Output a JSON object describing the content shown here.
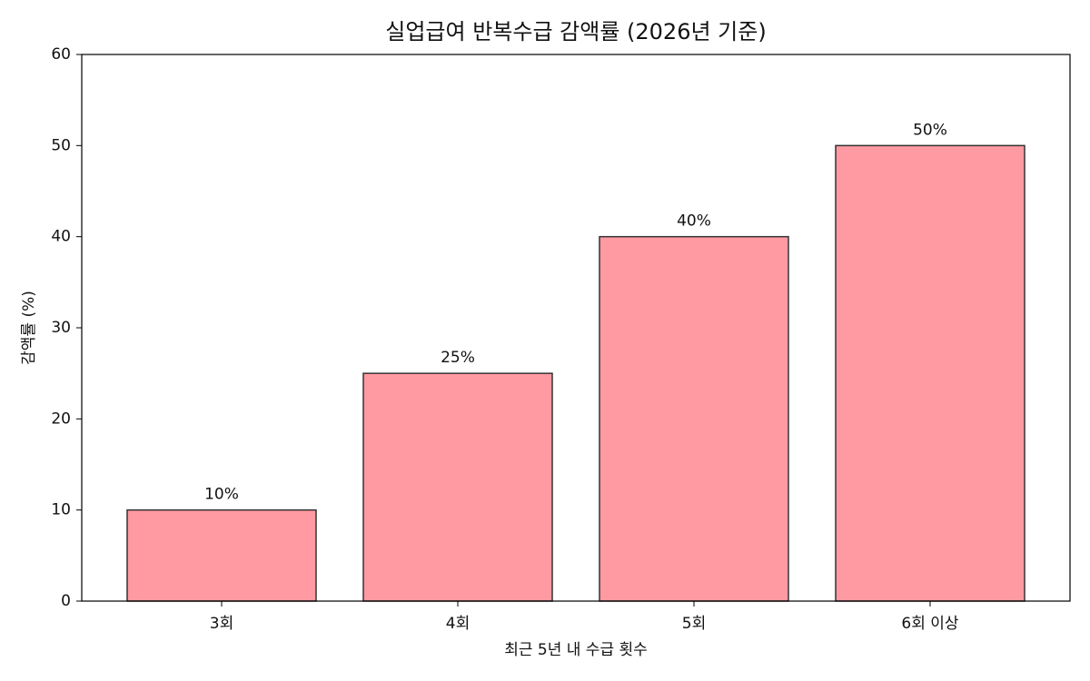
{
  "chart_data": {
    "type": "bar",
    "title": "실업급여 반복수급 감액률 (2026년 기준)",
    "x_label": "최근 5년 내 수급 횟수",
    "y_label": "감액률 (%)",
    "categories": [
      "3회",
      "4회",
      "5회",
      "6회 이상"
    ],
    "values": [
      10,
      25,
      40,
      50
    ],
    "value_labels": [
      "10%",
      "25%",
      "40%",
      "50%"
    ],
    "color": "#ff9aa2",
    "edge_color": "#333333",
    "ylim": [
      0,
      60
    ],
    "yticks": [
      0,
      10,
      20,
      30,
      40,
      50,
      60
    ],
    "grid": false
  }
}
